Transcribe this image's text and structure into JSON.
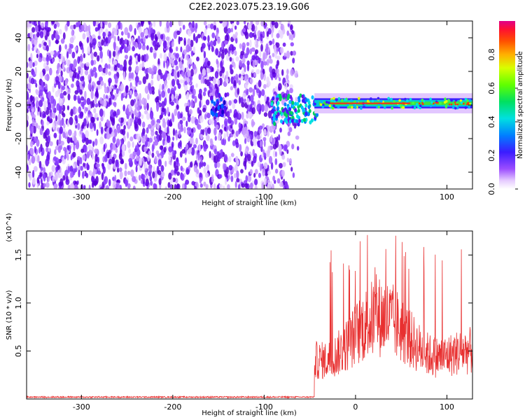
{
  "title": "C2E2.2023.075.23.19.G06",
  "chart_data": [
    {
      "type": "heatmap",
      "xlabel": "Height of straight line (km)",
      "ylabel": "Frequency (Hz)",
      "xlim": [
        -360,
        128
      ],
      "ylim": [
        -50,
        50
      ],
      "x_ticks": [
        -300,
        -200,
        -100,
        0,
        100
      ],
      "y_ticks": [
        -40,
        -20,
        0,
        20,
        40
      ],
      "colorbar": {
        "label": "Normalized spectral amplitude",
        "range": [
          0,
          1
        ],
        "ticks": [
          "0.0",
          "0.2",
          "0.4",
          "0.6",
          "0.8"
        ]
      },
      "features": {
        "noise_region_x": [
          -360,
          -65
        ],
        "signal_band_center_hz": 1,
        "signal_band_x": [
          -45,
          128
        ]
      }
    },
    {
      "type": "line",
      "xlabel": "Height of straight line (km)",
      "ylabel": "SNR (10 * v/v)",
      "y_multiplier": "(x10^4)",
      "xlim": [
        -360,
        128
      ],
      "ylim": [
        0,
        1.75
      ],
      "x_ticks": [
        -300,
        -200,
        -100,
        0,
        100
      ],
      "y_ticks": [
        0.5,
        1.0,
        1.5
      ],
      "line_color": "#e83030",
      "baseline_before_km": -45,
      "baseline_value": 0.02,
      "peak_value": 1.72
    }
  ]
}
